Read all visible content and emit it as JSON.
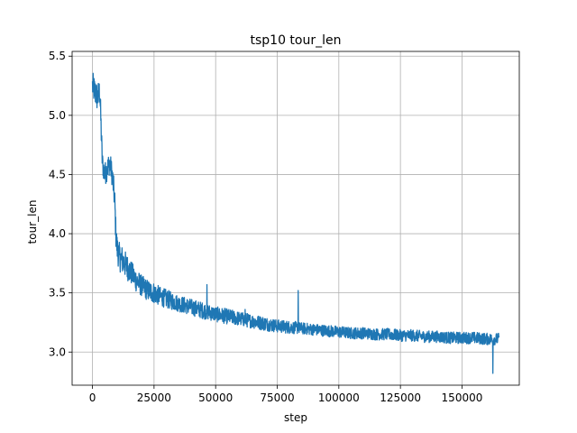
{
  "chart_data": {
    "type": "line",
    "title": "tsp10 tour_len",
    "xlabel": "step",
    "ylabel": "tour_len",
    "xlim": [
      -8250,
      173250
    ],
    "ylim": [
      2.72,
      5.54
    ],
    "grid": true,
    "xticks": [
      0,
      25000,
      50000,
      75000,
      100000,
      125000,
      150000
    ],
    "xtick_labels": [
      "0",
      "25000",
      "50000",
      "75000",
      "100000",
      "125000",
      "150000"
    ],
    "yticks": [
      3.0,
      3.5,
      4.0,
      4.5,
      5.0,
      5.5
    ],
    "ytick_labels": [
      "3.0",
      "3.5",
      "4.0",
      "4.5",
      "5.0",
      "5.5"
    ],
    "series": [
      {
        "color": "#1f77b4",
        "x": [
          0,
          1000,
          2000,
          3000,
          3500,
          4000,
          5000,
          6000,
          7000,
          8000,
          9000,
          9500,
          10000,
          11000,
          12000,
          14000,
          16000,
          18000,
          20000,
          22500,
          25000,
          27500,
          30000,
          35000,
          40000,
          45000,
          50000,
          55000,
          60000,
          65000,
          70000,
          75000,
          80000,
          85000,
          90000,
          95000,
          100000,
          105000,
          110000,
          115000,
          120000,
          125000,
          130000,
          135000,
          140000,
          145000,
          150000,
          155000,
          160000,
          165000
        ],
        "y": [
          5.25,
          5.2,
          5.15,
          5.2,
          4.9,
          4.6,
          4.5,
          4.55,
          4.6,
          4.5,
          4.3,
          4.0,
          3.88,
          3.8,
          3.78,
          3.72,
          3.66,
          3.6,
          3.56,
          3.52,
          3.5,
          3.47,
          3.45,
          3.41,
          3.38,
          3.35,
          3.32,
          3.3,
          3.28,
          3.26,
          3.24,
          3.22,
          3.21,
          3.2,
          3.19,
          3.18,
          3.17,
          3.16,
          3.16,
          3.15,
          3.15,
          3.14,
          3.14,
          3.13,
          3.13,
          3.12,
          3.12,
          3.12,
          3.11,
          3.11
        ],
        "noise": [
          0.12,
          0.12,
          0.12,
          0.12,
          0.12,
          0.1,
          0.1,
          0.1,
          0.1,
          0.1,
          0.12,
          0.12,
          0.12,
          0.12,
          0.12,
          0.11,
          0.1,
          0.1,
          0.09,
          0.09,
          0.09,
          0.08,
          0.08,
          0.07,
          0.07,
          0.07,
          0.065,
          0.065,
          0.06,
          0.06,
          0.06,
          0.055,
          0.055,
          0.05,
          0.05,
          0.05,
          0.05,
          0.05,
          0.05,
          0.05,
          0.05,
          0.05,
          0.05,
          0.05,
          0.05,
          0.05,
          0.05,
          0.05,
          0.05,
          0.05
        ],
        "spikes": [
          [
            46500,
            3.57
          ],
          [
            62000,
            3.36
          ],
          [
            83500,
            3.52
          ],
          [
            162500,
            2.82
          ]
        ]
      }
    ]
  }
}
